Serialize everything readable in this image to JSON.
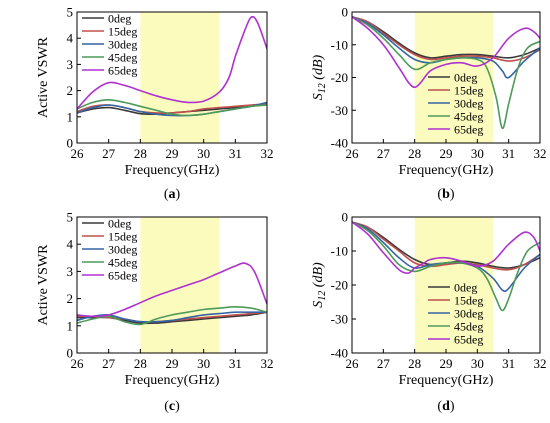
{
  "chart_data": [
    {
      "id": "a",
      "type": "line",
      "panel_label": "(a)",
      "xlabel": "Frequency(GHz)",
      "ylabel": "Active VSWR",
      "xlim": [
        26,
        32
      ],
      "ylim": [
        0,
        5
      ],
      "xticks": [
        26,
        27,
        28,
        29,
        30,
        31,
        32
      ],
      "yticks": [
        0,
        1,
        2,
        3,
        4,
        5
      ],
      "highlight_band": [
        28,
        30.5
      ],
      "legend_position": "top-left",
      "series": [
        {
          "name": "0deg",
          "color": "#3a3a3a",
          "x": [
            26,
            26.5,
            27,
            27.5,
            28,
            28.5,
            29,
            29.5,
            30,
            30.5,
            31,
            31.5,
            32
          ],
          "y": [
            1.15,
            1.3,
            1.35,
            1.25,
            1.12,
            1.1,
            1.15,
            1.2,
            1.25,
            1.3,
            1.35,
            1.4,
            1.5
          ]
        },
        {
          "name": "15deg",
          "color": "#c0504d",
          "x": [
            26,
            26.5,
            27,
            27.5,
            28,
            28.5,
            29,
            29.5,
            30,
            30.5,
            31,
            31.5,
            32
          ],
          "y": [
            1.2,
            1.4,
            1.45,
            1.35,
            1.2,
            1.15,
            1.15,
            1.2,
            1.3,
            1.35,
            1.4,
            1.45,
            1.5
          ]
        },
        {
          "name": "30deg",
          "color": "#3465a4",
          "x": [
            26,
            26.5,
            27,
            27.5,
            28,
            28.5,
            29,
            29.5,
            30,
            30.5,
            31,
            31.5,
            32
          ],
          "y": [
            1.15,
            1.35,
            1.45,
            1.35,
            1.2,
            1.1,
            1.05,
            1.05,
            1.1,
            1.2,
            1.3,
            1.4,
            1.55
          ]
        },
        {
          "name": "45deg",
          "color": "#4e9a5a",
          "x": [
            26,
            26.5,
            27,
            27.5,
            28,
            28.5,
            29,
            29.5,
            30,
            30.5,
            31,
            31.5,
            32
          ],
          "y": [
            1.3,
            1.55,
            1.65,
            1.55,
            1.4,
            1.25,
            1.1,
            1.05,
            1.1,
            1.2,
            1.3,
            1.4,
            1.45
          ]
        },
        {
          "name": "65deg",
          "color": "#b030d0",
          "x": [
            26,
            26.5,
            27,
            27.5,
            28,
            28.5,
            29,
            29.5,
            30,
            30.5,
            30.8,
            31,
            31.3,
            31.5,
            31.7,
            32
          ],
          "y": [
            1.3,
            1.95,
            2.3,
            2.2,
            2.0,
            1.8,
            1.65,
            1.55,
            1.6,
            1.95,
            2.5,
            3.3,
            4.3,
            4.8,
            4.6,
            3.6
          ]
        }
      ]
    },
    {
      "id": "b",
      "type": "line",
      "panel_label": "(b)",
      "xlabel": "Frequency(GHz)",
      "ylabel_main": "S",
      "ylabel_sub": "12",
      "ylabel_unit": " (dB)",
      "xlim": [
        26,
        32
      ],
      "ylim": [
        -40,
        0
      ],
      "xticks": [
        26,
        27,
        28,
        29,
        30,
        31,
        32
      ],
      "yticks": [
        -40,
        -30,
        -20,
        -10,
        0
      ],
      "highlight_band": [
        28,
        30.5
      ],
      "legend_position": "bottom-center",
      "series": [
        {
          "name": "0deg",
          "color": "#3a3a3a",
          "x": [
            26,
            26.5,
            27,
            27.5,
            28,
            28.5,
            29,
            29.5,
            30,
            30.5,
            31,
            31.5,
            32
          ],
          "y": [
            -1.5,
            -3,
            -6,
            -9.5,
            -12.5,
            -14,
            -13.5,
            -13,
            -13,
            -13.5,
            -14,
            -13,
            -11
          ]
        },
        {
          "name": "15deg",
          "color": "#c0504d",
          "x": [
            26,
            26.5,
            27,
            27.5,
            28,
            28.5,
            29,
            29.5,
            30,
            30.5,
            31,
            31.5,
            32
          ],
          "y": [
            -1.5,
            -3,
            -6.5,
            -10,
            -13,
            -14.5,
            -14,
            -13.5,
            -13.5,
            -14,
            -15,
            -14,
            -11.5
          ]
        },
        {
          "name": "30deg",
          "color": "#3465a4",
          "x": [
            26,
            26.5,
            27,
            27.5,
            28,
            28.5,
            29,
            29.5,
            30,
            30.5,
            30.8,
            31,
            31.5,
            32
          ],
          "y": [
            -1.5,
            -3.5,
            -7,
            -11,
            -14.5,
            -15.5,
            -14.5,
            -14,
            -14,
            -15,
            -18,
            -20,
            -15,
            -11
          ]
        },
        {
          "name": "45deg",
          "color": "#4e9a5a",
          "x": [
            26,
            26.5,
            27,
            27.5,
            28,
            28.5,
            29,
            29.5,
            30,
            30.3,
            30.6,
            30.8,
            31,
            31.3,
            31.6,
            32
          ],
          "y": [
            -1.5,
            -4,
            -8,
            -13,
            -17.5,
            -15.5,
            -14.5,
            -14,
            -14.5,
            -17,
            -26,
            -35.5,
            -28,
            -17,
            -11,
            -9
          ]
        },
        {
          "name": "65deg",
          "color": "#b030d0",
          "x": [
            26,
            26.5,
            27,
            27.5,
            27.8,
            28,
            28.2,
            28.5,
            29,
            29.5,
            30,
            30.5,
            31,
            31.5,
            31.8,
            32
          ],
          "y": [
            -1.5,
            -5,
            -10,
            -17,
            -21.5,
            -23,
            -21.5,
            -18,
            -16,
            -15.5,
            -16.5,
            -14,
            -8,
            -5,
            -6,
            -8
          ]
        }
      ]
    },
    {
      "id": "c",
      "type": "line",
      "panel_label": "(c)",
      "xlabel": "Frequency(GHz)",
      "ylabel": "Active VSWR",
      "xlim": [
        26,
        32
      ],
      "ylim": [
        0,
        5
      ],
      "xticks": [
        26,
        27,
        28,
        29,
        30,
        31,
        32
      ],
      "yticks": [
        0,
        1,
        2,
        3,
        4,
        5
      ],
      "highlight_band": [
        28,
        30.5
      ],
      "legend_position": "top-left",
      "series": [
        {
          "name": "0deg",
          "color": "#3a3a3a",
          "x": [
            26,
            26.5,
            27,
            27.5,
            28,
            28.5,
            29,
            29.5,
            30,
            30.5,
            31,
            31.5,
            32
          ],
          "y": [
            1.3,
            1.3,
            1.3,
            1.2,
            1.1,
            1.1,
            1.15,
            1.2,
            1.25,
            1.3,
            1.35,
            1.4,
            1.5
          ]
        },
        {
          "name": "15deg",
          "color": "#c0504d",
          "x": [
            26,
            26.5,
            27,
            27.5,
            28,
            28.5,
            29,
            29.5,
            30,
            30.5,
            31,
            31.5,
            32
          ],
          "y": [
            1.35,
            1.35,
            1.3,
            1.25,
            1.15,
            1.15,
            1.2,
            1.25,
            1.3,
            1.35,
            1.4,
            1.45,
            1.5
          ]
        },
        {
          "name": "30deg",
          "color": "#3465a4",
          "x": [
            26,
            26.5,
            27,
            27.5,
            28,
            28.5,
            29,
            29.5,
            30,
            30.5,
            31,
            31.5,
            32
          ],
          "y": [
            1.2,
            1.35,
            1.4,
            1.25,
            1.15,
            1.15,
            1.2,
            1.3,
            1.4,
            1.45,
            1.5,
            1.5,
            1.5
          ]
        },
        {
          "name": "45deg",
          "color": "#4e9a5a",
          "x": [
            26,
            26.5,
            27,
            27.5,
            28,
            28.5,
            29,
            29.5,
            30,
            30.5,
            31,
            31.5,
            32
          ],
          "y": [
            1.1,
            1.25,
            1.35,
            1.15,
            1.05,
            1.25,
            1.4,
            1.5,
            1.6,
            1.65,
            1.7,
            1.65,
            1.5
          ]
        },
        {
          "name": "65deg",
          "color": "#b030d0",
          "x": [
            26,
            26.5,
            27,
            27.5,
            28,
            28.5,
            29,
            29.5,
            30,
            30.5,
            31,
            31.3,
            31.6,
            32
          ],
          "y": [
            1.4,
            1.35,
            1.4,
            1.6,
            1.85,
            2.1,
            2.3,
            2.5,
            2.7,
            2.95,
            3.2,
            3.3,
            3.0,
            1.8
          ]
        }
      ]
    },
    {
      "id": "d",
      "type": "line",
      "panel_label": "(d)",
      "xlabel": "Frequency(GHz)",
      "ylabel_main": "S",
      "ylabel_sub": "12",
      "ylabel_unit": " (dB)",
      "xlim": [
        26,
        32
      ],
      "ylim": [
        -40,
        0
      ],
      "xticks": [
        26,
        27,
        28,
        29,
        30,
        31,
        32
      ],
      "yticks": [
        -40,
        -30,
        -20,
        -10,
        0
      ],
      "highlight_band": [
        28,
        30.5
      ],
      "legend_position": "bottom-center",
      "series": [
        {
          "name": "0deg",
          "color": "#3a3a3a",
          "x": [
            26,
            26.5,
            27,
            27.5,
            28,
            28.5,
            29,
            29.5,
            30,
            30.5,
            31,
            31.5,
            32
          ],
          "y": [
            -1.5,
            -3,
            -6,
            -9.5,
            -12.5,
            -14,
            -13.5,
            -13,
            -13.5,
            -14.5,
            -15,
            -14,
            -12
          ]
        },
        {
          "name": "15deg",
          "color": "#c0504d",
          "x": [
            26,
            26.5,
            27,
            27.5,
            28,
            28.5,
            29,
            29.5,
            30,
            30.5,
            31,
            31.5,
            32
          ],
          "y": [
            -1.5,
            -3,
            -6.5,
            -10,
            -13.5,
            -14.5,
            -14,
            -13.5,
            -14,
            -15,
            -15.5,
            -14,
            -11
          ]
        },
        {
          "name": "30deg",
          "color": "#3465a4",
          "x": [
            26,
            26.5,
            27,
            27.5,
            28,
            28.5,
            29,
            29.5,
            30,
            30.5,
            30.8,
            31,
            31.5,
            32
          ],
          "y": [
            -1.5,
            -3.5,
            -7.5,
            -12,
            -15,
            -14,
            -13.5,
            -13.5,
            -14.5,
            -18,
            -21.5,
            -21,
            -15,
            -11
          ]
        },
        {
          "name": "45deg",
          "color": "#4e9a5a",
          "x": [
            26,
            26.5,
            27,
            27.5,
            28,
            28.5,
            29,
            29.5,
            30,
            30.3,
            30.6,
            30.8,
            31,
            31.3,
            31.6,
            32
          ],
          "y": [
            -1.5,
            -4,
            -8.5,
            -14,
            -16,
            -14.5,
            -13.5,
            -13.5,
            -15,
            -18,
            -24,
            -27.5,
            -24,
            -16,
            -10,
            -7.5
          ]
        },
        {
          "name": "65deg",
          "color": "#b030d0",
          "x": [
            26,
            26.5,
            27,
            27.5,
            27.8,
            28,
            28.3,
            28.5,
            29,
            29.5,
            30,
            30.5,
            31,
            31.5,
            31.8,
            32
          ],
          "y": [
            -1.5,
            -5,
            -10.5,
            -15.5,
            -16.5,
            -15,
            -13.5,
            -12.5,
            -12,
            -13,
            -14.5,
            -13,
            -8,
            -4.5,
            -6,
            -10
          ]
        }
      ]
    }
  ]
}
